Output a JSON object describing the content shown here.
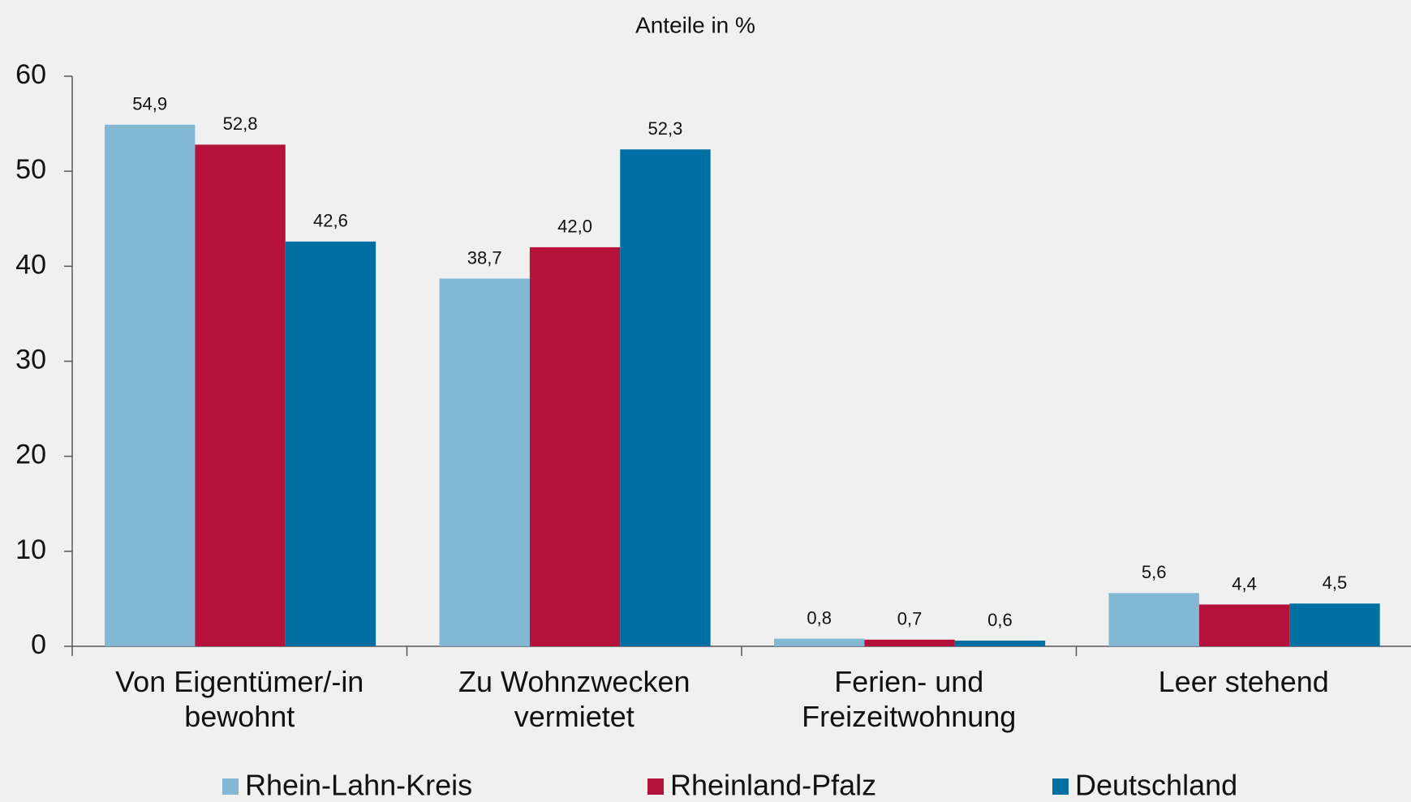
{
  "chart_data": {
    "type": "bar",
    "title": "Anteile in %",
    "categories": [
      "Von Eigentümer/-in bewohnt",
      "Zu Wohnzwecken vermietet",
      "Ferien- und Freizeitwohnung",
      "Leer stehend"
    ],
    "series": [
      {
        "name": "Rhein-Lahn-Kreis",
        "color": "#82b8d4",
        "values": [
          54.9,
          38.7,
          0.8,
          5.6
        ],
        "value_labels": [
          "54,9",
          "38,7",
          "0,8",
          "5,6"
        ]
      },
      {
        "name": "Rheinland-Pfalz",
        "color": "#b5123b",
        "values": [
          52.8,
          42.0,
          0.7,
          4.4
        ],
        "value_labels": [
          "52,8",
          "42,0",
          "0,7",
          "4,4"
        ]
      },
      {
        "name": "Deutschland",
        "color": "#0070a3",
        "values": [
          42.6,
          52.3,
          0.6,
          4.5
        ],
        "value_labels": [
          "42,6",
          "52,3",
          "0,6",
          "4,5"
        ]
      }
    ],
    "ylim": [
      0,
      60
    ],
    "yticks": [
      0,
      10,
      20,
      30,
      40,
      50,
      60
    ],
    "grid": false,
    "legend": "bottom"
  }
}
